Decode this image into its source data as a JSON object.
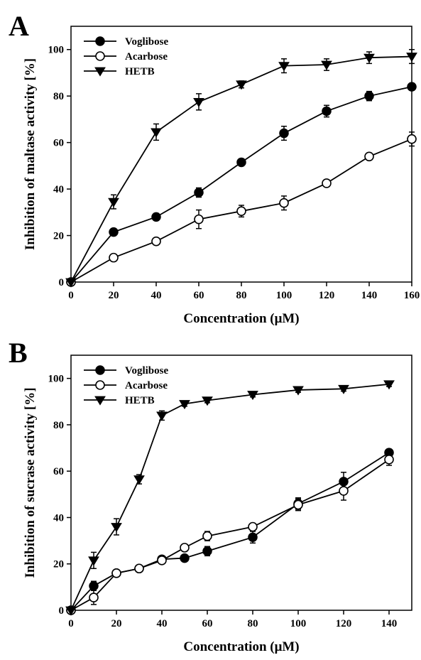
{
  "chart_data": [
    {
      "panel_label": "A",
      "type": "line",
      "xlabel": "Concentration (μM)",
      "ylabel": "Inhibition of maltase activity [%]",
      "xlim": [
        0,
        160
      ],
      "ylim": [
        0,
        110
      ],
      "xticks": [
        0,
        20,
        40,
        60,
        80,
        100,
        120,
        140,
        160
      ],
      "yticks": [
        0,
        20,
        40,
        60,
        80,
        100
      ],
      "grid": false,
      "legend_position": "top-left",
      "series": [
        {
          "name": "Voglibose",
          "marker": "filled-circle",
          "x": [
            0,
            20,
            40,
            60,
            80,
            100,
            120,
            140,
            160
          ],
          "y": [
            0,
            21.5,
            28,
            38.5,
            51.5,
            64,
            73.5,
            80,
            84
          ],
          "err": [
            0,
            1.5,
            1.5,
            2,
            1.5,
            3,
            2.5,
            2,
            1.5
          ]
        },
        {
          "name": "Acarbose",
          "marker": "open-circle",
          "x": [
            0,
            20,
            40,
            60,
            80,
            100,
            120,
            140,
            160
          ],
          "y": [
            0,
            10.5,
            17.5,
            27,
            30.5,
            34,
            42.5,
            54,
            61.5
          ],
          "err": [
            0,
            1.5,
            1.5,
            4,
            2.5,
            3,
            1.5,
            1.5,
            3
          ]
        },
        {
          "name": "HETB",
          "marker": "filled-triangle-down",
          "x": [
            0,
            20,
            40,
            60,
            80,
            100,
            120,
            140,
            160
          ],
          "y": [
            0,
            34.5,
            64.5,
            77.5,
            85,
            93,
            93.5,
            96.5,
            97
          ],
          "err": [
            0,
            3,
            3.5,
            3.5,
            1.5,
            3,
            2.5,
            2.5,
            3
          ]
        }
      ]
    },
    {
      "panel_label": "B",
      "type": "line",
      "xlabel": "Concentration (μM)",
      "ylabel": "Inhibition of sucrase activity [%]",
      "xlim": [
        0,
        150
      ],
      "ylim": [
        0,
        110
      ],
      "xticks": [
        0,
        20,
        40,
        60,
        80,
        100,
        120,
        140
      ],
      "yticks": [
        0,
        20,
        40,
        60,
        80,
        100
      ],
      "grid": false,
      "legend_position": "top-left",
      "series": [
        {
          "name": "Voglibose",
          "marker": "filled-circle",
          "x": [
            0,
            10,
            20,
            30,
            40,
            50,
            60,
            80,
            100,
            120,
            140
          ],
          "y": [
            0,
            10.5,
            16,
            18,
            22,
            22.5,
            25.5,
            31.5,
            46,
            55.5,
            68
          ],
          "err": [
            0,
            2,
            1,
            1,
            1,
            1,
            2,
            2.5,
            2.5,
            4,
            1.5
          ]
        },
        {
          "name": "Acarbose",
          "marker": "open-circle",
          "x": [
            0,
            10,
            20,
            30,
            40,
            50,
            60,
            80,
            100,
            120,
            140
          ],
          "y": [
            0,
            5.5,
            16,
            18,
            21.5,
            27,
            32,
            36,
            45.5,
            51.5,
            65
          ],
          "err": [
            0,
            3,
            1,
            1,
            1,
            1.5,
            2,
            1.5,
            2.5,
            4,
            2.5
          ]
        },
        {
          "name": "HETB",
          "marker": "filled-triangle-down",
          "x": [
            0,
            10,
            20,
            30,
            40,
            50,
            60,
            80,
            100,
            120,
            140
          ],
          "y": [
            0,
            21.5,
            36,
            56.5,
            84,
            89,
            90.5,
            93,
            95,
            95.5,
            97.5
          ],
          "err": [
            0,
            3.5,
            3.5,
            2,
            2,
            1,
            1,
            1,
            1,
            1,
            1
          ]
        }
      ]
    }
  ]
}
